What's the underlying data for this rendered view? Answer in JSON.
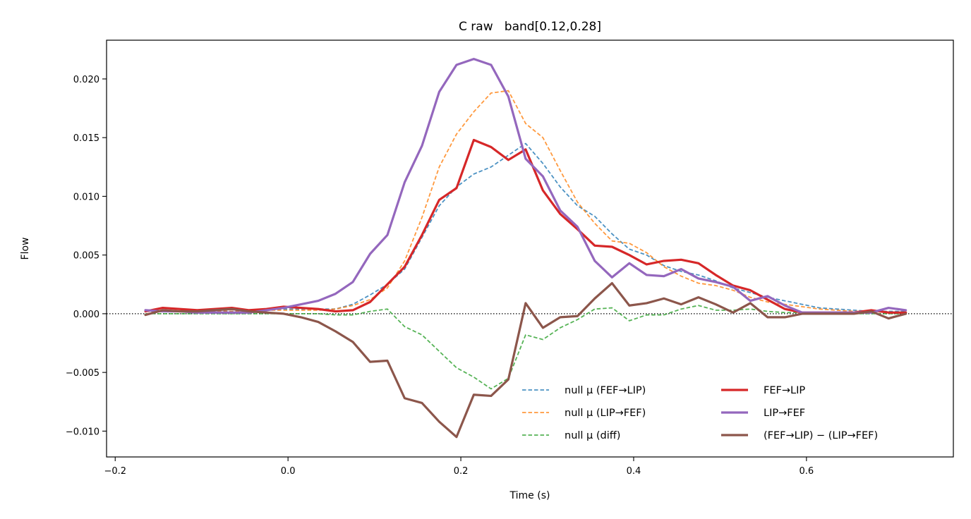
{
  "chart_data": {
    "type": "line",
    "title": "C raw   band[0.12,0.28]",
    "xlabel": "Time (s)",
    "ylabel": "Flow",
    "xlim": [
      -0.21,
      0.77
    ],
    "ylim": [
      -0.0122,
      0.0233
    ],
    "xticks": [
      -0.2,
      0.0,
      0.2,
      0.4,
      0.6
    ],
    "xtick_labels": [
      "−0.2",
      "0.0",
      "0.2",
      "0.4",
      "0.6"
    ],
    "yticks": [
      -0.01,
      -0.005,
      0.0,
      0.005,
      0.01,
      0.015,
      0.02
    ],
    "ytick_labels": [
      "−0.010",
      "−0.005",
      "0.000",
      "0.005",
      "0.010",
      "0.015",
      "0.020"
    ],
    "grid": false,
    "zero_line": true,
    "legend_position": "lower-right",
    "x": [
      -0.165,
      -0.145,
      -0.125,
      -0.105,
      -0.085,
      -0.065,
      -0.045,
      -0.025,
      -0.005,
      0.015,
      0.035,
      0.055,
      0.075,
      0.095,
      0.115,
      0.135,
      0.155,
      0.175,
      0.195,
      0.215,
      0.235,
      0.255,
      0.275,
      0.295,
      0.315,
      0.335,
      0.355,
      0.375,
      0.395,
      0.415,
      0.435,
      0.455,
      0.475,
      0.495,
      0.515,
      0.535,
      0.555,
      0.575,
      0.595,
      0.615,
      0.635,
      0.655,
      0.675,
      0.695,
      0.715
    ],
    "series": [
      {
        "name": "null μ (FEF→LIP)",
        "color": "#1f77b4",
        "style": "dashed",
        "values": [
          0.0002,
          0.0002,
          0.0002,
          0.0002,
          0.0002,
          0.0002,
          0.0003,
          0.0003,
          0.0004,
          0.0004,
          0.0004,
          0.0004,
          0.0008,
          0.0016,
          0.0025,
          0.0038,
          0.0065,
          0.0092,
          0.0108,
          0.0119,
          0.0125,
          0.0135,
          0.0145,
          0.0128,
          0.0108,
          0.0092,
          0.0083,
          0.0068,
          0.0055,
          0.005,
          0.0041,
          0.0036,
          0.0033,
          0.0028,
          0.0022,
          0.0018,
          0.0014,
          0.0011,
          0.0008,
          0.0005,
          0.0004,
          0.0003,
          0.0002,
          0.0002,
          0.0002
        ]
      },
      {
        "name": "null μ (LIP→FEF)",
        "color": "#ff7f0e",
        "style": "dashed",
        "values": [
          0.0002,
          0.0002,
          0.0002,
          0.0002,
          0.0002,
          0.0002,
          0.0002,
          0.0003,
          0.0003,
          0.0003,
          0.0003,
          0.0004,
          0.0007,
          0.0012,
          0.0022,
          0.0045,
          0.0082,
          0.0125,
          0.0153,
          0.0172,
          0.0188,
          0.019,
          0.0162,
          0.015,
          0.0122,
          0.0095,
          0.0077,
          0.0062,
          0.006,
          0.0052,
          0.004,
          0.0032,
          0.0026,
          0.0024,
          0.002,
          0.0014,
          0.001,
          0.0008,
          0.0006,
          0.0004,
          0.0003,
          0.0002,
          0.0002,
          0.0001,
          0.0001
        ]
      },
      {
        "name": "null μ (diff)",
        "color": "#2ca02c",
        "style": "dashed",
        "values": [
          0.0,
          0.0,
          0.0,
          0.0,
          0.0,
          0.0,
          0.0,
          0.0,
          0.0,
          0.0,
          0.0,
          -0.0001,
          -0.0001,
          0.0002,
          0.0004,
          -0.0011,
          -0.0018,
          -0.0032,
          -0.0046,
          -0.0054,
          -0.0064,
          -0.0055,
          -0.0018,
          -0.0022,
          -0.0012,
          -0.0005,
          0.0004,
          0.0005,
          -0.0006,
          -0.0001,
          -0.0001,
          0.0004,
          0.0007,
          0.0003,
          0.0003,
          0.0004,
          0.0002,
          0.0001,
          0.0001,
          0.0001,
          0.0001,
          0.0,
          0.0,
          0.0,
          0.0
        ]
      },
      {
        "name": "FEF→LIP",
        "color": "#d62728",
        "style": "solid",
        "values": [
          0.0002,
          0.0005,
          0.0004,
          0.0003,
          0.0004,
          0.0005,
          0.0003,
          0.0004,
          0.0006,
          0.0005,
          0.0004,
          0.0002,
          0.0003,
          0.001,
          0.0025,
          0.004,
          0.0067,
          0.0097,
          0.0107,
          0.0148,
          0.0142,
          0.0131,
          0.014,
          0.0105,
          0.0085,
          0.0072,
          0.0058,
          0.0057,
          0.005,
          0.0042,
          0.0045,
          0.0046,
          0.0043,
          0.0033,
          0.0024,
          0.002,
          0.0012,
          0.0004,
          0.0001,
          0.0001,
          0.0001,
          0.0001,
          0.0003,
          0.0001,
          0.0001
        ]
      },
      {
        "name": "LIP→FEF",
        "color": "#9467bd",
        "style": "solid",
        "values": [
          0.0003,
          0.0002,
          0.0002,
          0.0001,
          0.0001,
          0.0001,
          0.0001,
          0.0003,
          0.0005,
          0.0008,
          0.0011,
          0.0017,
          0.0027,
          0.0051,
          0.0067,
          0.0112,
          0.0143,
          0.0189,
          0.0212,
          0.0217,
          0.0212,
          0.0185,
          0.0132,
          0.0117,
          0.0088,
          0.0074,
          0.0045,
          0.0031,
          0.0043,
          0.0033,
          0.0032,
          0.0038,
          0.003,
          0.0027,
          0.0023,
          0.0011,
          0.0015,
          0.0007,
          0.0001,
          0.0001,
          0.0001,
          0.0001,
          0.0001,
          0.0005,
          0.0003
        ]
      },
      {
        "name": "(FEF→LIP) − (LIP→FEF)",
        "color": "#8c564b",
        "style": "solid",
        "values": [
          -0.0001,
          0.0003,
          0.0002,
          0.0002,
          0.0003,
          0.0004,
          0.0002,
          0.0001,
          0.0,
          -0.0003,
          -0.0007,
          -0.0015,
          -0.0024,
          -0.0041,
          -0.004,
          -0.0072,
          -0.0076,
          -0.0092,
          -0.0105,
          -0.0069,
          -0.007,
          -0.0056,
          0.0009,
          -0.0012,
          -0.0003,
          -0.0002,
          0.0013,
          0.0026,
          0.0007,
          0.0009,
          0.0013,
          0.0008,
          0.0014,
          0.0008,
          0.0001,
          0.0009,
          -0.0003,
          -0.0003,
          0.0,
          0.0,
          0.0,
          0.0,
          0.0002,
          -0.0004,
          0.0
        ]
      }
    ]
  }
}
